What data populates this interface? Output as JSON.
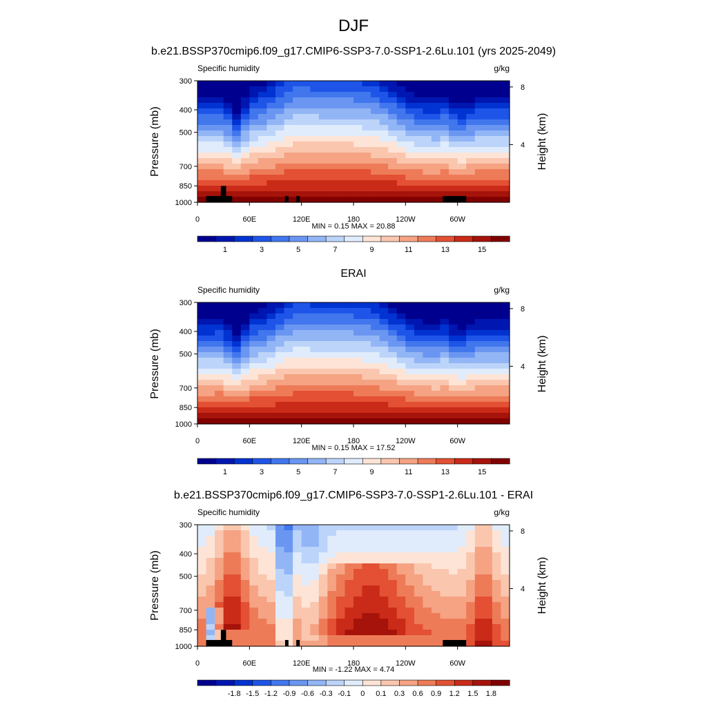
{
  "figure": {
    "title": "DJF"
  },
  "panels": [
    {
      "id": "model",
      "title": "b.e21.BSSP370cmip6.f09_g17.CMIP6-SSP3-7.0-SSP1-2.6Lu.101 (yrs 2025-2049)",
      "left_label": "Specific humidity",
      "right_label": "g/kg",
      "stats": "MIN =  0.15  MAX =  20.88"
    },
    {
      "id": "obs",
      "title": "ERAI",
      "left_label": "Specific humidity",
      "right_label": "g/kg",
      "stats": "MIN =  0.15  MAX =  17.52"
    },
    {
      "id": "diff",
      "title": "b.e21.BSSP370cmip6.f09_g17.CMIP6-SSP3-7.0-SSP1-2.6Lu.101 - ERAI",
      "left_label": "Specific humidity",
      "right_label": "g/kg",
      "stats": "MIN =  -1.22  MAX =  4.74"
    }
  ],
  "axes": {
    "ylabel": "Pressure (mb)",
    "y2label": "Height (km)",
    "pressure_ticks": [
      300,
      400,
      500,
      700,
      850,
      1000
    ],
    "pressure_tick_labels": [
      "300",
      "400",
      "500",
      "700",
      "850",
      "1000"
    ],
    "height_ticks": [
      4,
      8
    ],
    "height_tick_labels": [
      "4",
      "8"
    ],
    "lon_ticks": [
      0,
      60,
      120,
      180,
      240,
      300
    ],
    "lon_tick_labels": [
      "0",
      "60E",
      "120E",
      "180",
      "120W",
      "60W"
    ],
    "xlim": [
      0,
      360
    ],
    "ylim": [
      1000,
      300
    ]
  },
  "chart_data": [
    {
      "type": "heatmap",
      "panel": "model",
      "x": "longitude",
      "y": "pressure",
      "colorbar_labels": [
        "1",
        "3",
        "5",
        "7",
        "9",
        "11",
        "13",
        "15"
      ],
      "colors": [
        "#00008f",
        "#0016b0",
        "#0033d1",
        "#1e55e8",
        "#4176ed",
        "#6a96f2",
        "#92b5f5",
        "#bcd4f9",
        "#e0ecfc",
        "#fde4d6",
        "#fac6ae",
        "#f5a383",
        "#ee7b58",
        "#e35033",
        "#ca2a18",
        "#a5130a",
        "#800000"
      ]
    },
    {
      "type": "heatmap",
      "panel": "obs",
      "x": "longitude",
      "y": "pressure",
      "colorbar_labels": [
        "1",
        "3",
        "5",
        "7",
        "9",
        "11",
        "13",
        "15"
      ],
      "colors": [
        "#00008f",
        "#0016b0",
        "#0033d1",
        "#1e55e8",
        "#4176ed",
        "#6a96f2",
        "#92b5f5",
        "#bcd4f9",
        "#e0ecfc",
        "#fde4d6",
        "#fac6ae",
        "#f5a383",
        "#ee7b58",
        "#e35033",
        "#ca2a18",
        "#a5130a",
        "#800000"
      ]
    },
    {
      "type": "heatmap",
      "panel": "diff",
      "x": "longitude",
      "y": "pressure",
      "colorbar_labels": [
        "-1.8",
        "-1.5",
        "-1.2",
        "-0.9",
        "-0.6",
        "-0.3",
        "-0.1",
        "0",
        "0.1",
        "0.3",
        "0.6",
        "0.9",
        "1.2",
        "1.5",
        "1.8"
      ],
      "colors": [
        "#00008f",
        "#0016b0",
        "#0033d1",
        "#1e55e8",
        "#4176ed",
        "#6a96f2",
        "#92b5f5",
        "#bcd4f9",
        "#e0ecfc",
        "#fde4d6",
        "#fac6ae",
        "#f5a383",
        "#ee7b58",
        "#e35033",
        "#ca2a18",
        "#a5130a",
        "#800000"
      ]
    }
  ]
}
